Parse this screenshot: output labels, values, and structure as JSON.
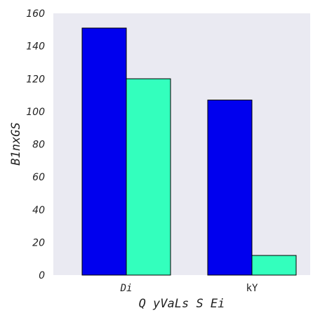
{
  "chart_data": {
    "type": "bar",
    "categories": [
      "Di",
      "kY"
    ],
    "series": [
      {
        "values": [
          151,
          107
        ],
        "color": "#0000ee"
      },
      {
        "values": [
          120,
          12
        ],
        "color": "#33ffbd"
      }
    ],
    "xlabel": "Q yVaLs S Ei",
    "ylabel": "B1nxGS",
    "ylim": [
      0,
      160
    ],
    "yticks": [
      0,
      20,
      40,
      60,
      80,
      100,
      120,
      140,
      160
    ],
    "grid": false,
    "background": "#eaeaf2"
  }
}
